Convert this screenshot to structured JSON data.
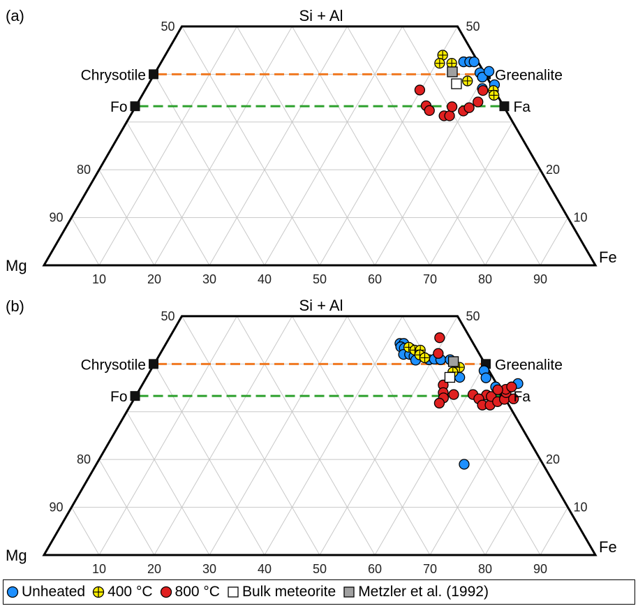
{
  "chart_data": [
    {
      "type": "scatter",
      "subtype": "ternary-trapezoid",
      "panel_label": "(a)",
      "apices": {
        "top": "Si + Al",
        "left": "Mg",
        "right": "Fe"
      },
      "top_tick_labels": [
        "50",
        "50"
      ],
      "left_tick_labels": [
        "80",
        "90"
      ],
      "right_tick_labels": [
        "20",
        "10"
      ],
      "bottom_tick_labels": [
        "10",
        "20",
        "30",
        "40",
        "50",
        "60",
        "70",
        "80",
        "90"
      ],
      "reference_lines": [
        {
          "label_left": "Chrysotile",
          "label_right": "Greenalite",
          "si_al": 40,
          "color": "#f07820"
        },
        {
          "label_left": "Fo",
          "label_right": "Fa",
          "si_al": 33.3,
          "color": "#2ca02c"
        }
      ],
      "series": [
        {
          "name": "Unheated",
          "color": "#1e90ff",
          "points": [
            [
              54.8,
              42.6
            ],
            [
              55.9,
              42.6
            ],
            [
              56.7,
              42.6
            ],
            [
              58.9,
              40.3
            ],
            [
              59.8,
              39.4
            ],
            [
              60.4,
              40.6
            ],
            [
              62.8,
              37.8
            ],
            [
              61.0,
              37.0
            ]
          ]
        },
        {
          "name": "400 °C",
          "color": "#ffee00",
          "points": [
            [
              50.3,
              44.0
            ],
            [
              50.6,
              42.3
            ],
            [
              52.8,
              42.3
            ],
            [
              57.5,
              38.6
            ],
            [
              63.2,
              36.6
            ],
            [
              63.8,
              35.6
            ]
          ]
        },
        {
          "name": "800 °C",
          "color": "#e02020",
          "points": [
            [
              49.8,
              36.7
            ],
            [
              52.6,
              33.4
            ],
            [
              53.7,
              32.4
            ],
            [
              56.9,
              31.3
            ],
            [
              57.9,
              31.3
            ],
            [
              57.4,
              33.2
            ],
            [
              59.9,
              32.3
            ],
            [
              60.6,
              33.0
            ],
            [
              61.3,
              36.6
            ],
            [
              61.6,
              34.2
            ]
          ]
        },
        {
          "name": "Bulk meteorite",
          "color": "#ffffff",
          "points": [
            [
              55.8,
              38.0
            ]
          ]
        },
        {
          "name": "Metzler et al. (1992)",
          "color": "#a0a0a0",
          "points": [
            [
              53.8,
              40.5
            ]
          ]
        }
      ]
    },
    {
      "type": "scatter",
      "subtype": "ternary-trapezoid",
      "panel_label": "(b)",
      "apices": {
        "top": "Si + Al",
        "left": "Mg",
        "right": "Fe"
      },
      "top_tick_labels": [
        "50",
        "50"
      ],
      "left_tick_labels": [
        "80",
        "90"
      ],
      "right_tick_labels": [
        "20",
        "10"
      ],
      "bottom_tick_labels": [
        "10",
        "20",
        "30",
        "40",
        "50",
        "60",
        "70",
        "80",
        "90"
      ],
      "reference_lines": [
        {
          "label_left": "Chrysotile",
          "label_right": "Greenalite",
          "si_al": 40,
          "color": "#f07820"
        },
        {
          "label_left": "Fo",
          "label_right": "Fa",
          "si_al": 33.3,
          "color": "#2ca02c"
        }
      ],
      "series": [
        {
          "name": "Unheated",
          "color": "#1e90ff",
          "points": [
            [
              42.4,
              44.3
            ],
            [
              43.1,
              44.3
            ],
            [
              42.9,
              43.6
            ],
            [
              43.7,
              43.3
            ],
            [
              44.9,
              43.2
            ],
            [
              44.2,
              42.0
            ],
            [
              45.3,
              42.0
            ],
            [
              46.3,
              41.6
            ],
            [
              47.3,
              41.6
            ],
            [
              47.0,
              40.8
            ],
            [
              49.4,
              40.9
            ],
            [
              50.3,
              41.0
            ],
            [
              51.5,
              40.9
            ],
            [
              53.2,
              40.9
            ],
            [
              56.8,
              37.2
            ],
            [
              60.5,
              38.6
            ],
            [
              61.6,
              37.1
            ],
            [
              64.3,
              35.2
            ],
            [
              68.0,
              35.9
            ],
            [
              66.7,
              19.0
            ]
          ]
        },
        {
          "name": "400 °C",
          "color": "#ffee00",
          "points": [
            [
              44.4,
              43.5
            ],
            [
              45.8,
              42.9
            ],
            [
              46.8,
              42.9
            ],
            [
              47.2,
              41.9
            ],
            [
              48.4,
              41.3
            ],
            [
              55.7,
              39.3
            ],
            [
              55.0,
              38.3
            ]
          ]
        },
        {
          "name": "800 °C",
          "color": "#e02020",
          "points": [
            [
              49.0,
              45.5
            ],
            [
              50.4,
              42.2
            ],
            [
              54.6,
              35.6
            ],
            [
              55.4,
              34.0
            ],
            [
              56.0,
              32.9
            ],
            [
              57.5,
              33.6
            ],
            [
              55.8,
              31.8
            ],
            [
              61.0,
              33.6
            ],
            [
              63.5,
              33.5
            ],
            [
              62.5,
              32.7
            ],
            [
              63.8,
              31.4
            ],
            [
              65.2,
              31.4
            ],
            [
              64.5,
              33.2
            ],
            [
              66.2,
              32.1
            ],
            [
              67.2,
              32.6
            ],
            [
              66.8,
              34.0
            ],
            [
              66.4,
              34.7
            ],
            [
              67.2,
              35.2
            ],
            [
              65.0,
              34.6
            ],
            [
              68.8,
              32.7
            ]
          ]
        },
        {
          "name": "Bulk meteorite",
          "color": "#ffffff",
          "points": [
            [
              55.0,
              37.2
            ]
          ]
        },
        {
          "name": "Metzler et al. (1992)",
          "color": "#a0a0a0",
          "points": [
            [
              54.0,
              40.5
            ]
          ]
        }
      ]
    }
  ],
  "legend": [
    {
      "label": "Unheated",
      "shape": "circle",
      "color": "#1e90ff"
    },
    {
      "label": "400 °C",
      "shape": "circle-cross",
      "color": "#ffee00"
    },
    {
      "label": "800 °C",
      "shape": "circle",
      "color": "#e02020"
    },
    {
      "label": "Bulk meteorite",
      "shape": "square",
      "color": "#ffffff"
    },
    {
      "label": "Metzler et al. (1992)",
      "shape": "square",
      "color": "#a0a0a0"
    }
  ]
}
